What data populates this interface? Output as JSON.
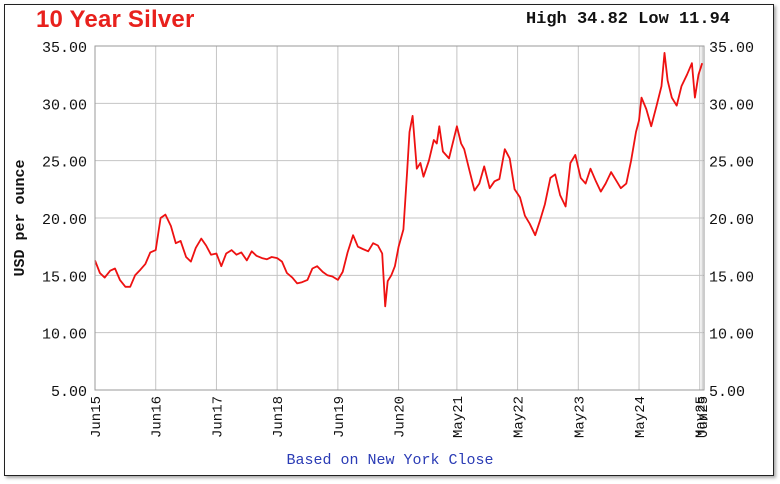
{
  "chart_data": {
    "type": "line",
    "title": "10 Year Silver",
    "stats": "High 34.82 Low 11.94",
    "ylabel": "USD per ounce",
    "footer": "Based on New York Close",
    "ylim": [
      5,
      35
    ],
    "yticks": [
      "35.00",
      "30.00",
      "25.00",
      "20.00",
      "15.00",
      "10.00",
      "5.00"
    ],
    "xlim": [
      2015.42,
      2025.45
    ],
    "xticks": [
      {
        "label": "Jun15",
        "x": 2015.42
      },
      {
        "label": "Jun16",
        "x": 2016.42
      },
      {
        "label": "Jun17",
        "x": 2017.42
      },
      {
        "label": "Jun18",
        "x": 2018.42
      },
      {
        "label": "Jun19",
        "x": 2019.42
      },
      {
        "label": "Jun20",
        "x": 2020.42
      },
      {
        "label": "May21",
        "x": 2021.38
      },
      {
        "label": "May22",
        "x": 2022.38
      },
      {
        "label": "May23",
        "x": 2023.38
      },
      {
        "label": "May24",
        "x": 2024.38
      },
      {
        "label": "May25",
        "x": 2025.38
      },
      {
        "label": "Jun25",
        "x": 2025.42
      }
    ],
    "series": [
      {
        "color": "#ee1111",
        "points": [
          [
            2015.42,
            16.3
          ],
          [
            2015.5,
            15.2
          ],
          [
            2015.58,
            14.8
          ],
          [
            2015.67,
            15.4
          ],
          [
            2015.75,
            15.6
          ],
          [
            2015.83,
            14.6
          ],
          [
            2015.92,
            14.0
          ],
          [
            2016.0,
            14.0
          ],
          [
            2016.08,
            15.0
          ],
          [
            2016.17,
            15.5
          ],
          [
            2016.25,
            16.0
          ],
          [
            2016.33,
            17.0
          ],
          [
            2016.42,
            17.2
          ],
          [
            2016.5,
            20.0
          ],
          [
            2016.58,
            20.3
          ],
          [
            2016.67,
            19.3
          ],
          [
            2016.75,
            17.8
          ],
          [
            2016.83,
            18.0
          ],
          [
            2016.92,
            16.6
          ],
          [
            2017.0,
            16.2
          ],
          [
            2017.08,
            17.4
          ],
          [
            2017.17,
            18.2
          ],
          [
            2017.25,
            17.6
          ],
          [
            2017.33,
            16.8
          ],
          [
            2017.42,
            16.9
          ],
          [
            2017.5,
            15.8
          ],
          [
            2017.58,
            16.9
          ],
          [
            2017.67,
            17.2
          ],
          [
            2017.75,
            16.8
          ],
          [
            2017.83,
            17.0
          ],
          [
            2017.92,
            16.3
          ],
          [
            2018.0,
            17.1
          ],
          [
            2018.08,
            16.7
          ],
          [
            2018.17,
            16.5
          ],
          [
            2018.25,
            16.4
          ],
          [
            2018.33,
            16.6
          ],
          [
            2018.42,
            16.5
          ],
          [
            2018.5,
            16.2
          ],
          [
            2018.58,
            15.2
          ],
          [
            2018.67,
            14.8
          ],
          [
            2018.75,
            14.3
          ],
          [
            2018.83,
            14.4
          ],
          [
            2018.92,
            14.6
          ],
          [
            2019.0,
            15.6
          ],
          [
            2019.08,
            15.8
          ],
          [
            2019.17,
            15.3
          ],
          [
            2019.25,
            15.0
          ],
          [
            2019.33,
            14.9
          ],
          [
            2019.42,
            14.6
          ],
          [
            2019.5,
            15.3
          ],
          [
            2019.58,
            17.0
          ],
          [
            2019.67,
            18.5
          ],
          [
            2019.75,
            17.5
          ],
          [
            2019.83,
            17.3
          ],
          [
            2019.92,
            17.1
          ],
          [
            2020.0,
            17.8
          ],
          [
            2020.08,
            17.6
          ],
          [
            2020.15,
            16.9
          ],
          [
            2020.2,
            12.3
          ],
          [
            2020.24,
            14.5
          ],
          [
            2020.3,
            15.0
          ],
          [
            2020.36,
            15.8
          ],
          [
            2020.42,
            17.5
          ],
          [
            2020.5,
            19.0
          ],
          [
            2020.56,
            24.0
          ],
          [
            2020.6,
            27.5
          ],
          [
            2020.65,
            28.9
          ],
          [
            2020.72,
            24.3
          ],
          [
            2020.78,
            24.8
          ],
          [
            2020.83,
            23.6
          ],
          [
            2020.92,
            25.0
          ],
          [
            2021.0,
            26.8
          ],
          [
            2021.05,
            26.5
          ],
          [
            2021.09,
            28.0
          ],
          [
            2021.15,
            25.8
          ],
          [
            2021.25,
            25.2
          ],
          [
            2021.33,
            26.9
          ],
          [
            2021.38,
            28.0
          ],
          [
            2021.45,
            26.5
          ],
          [
            2021.5,
            26.0
          ],
          [
            2021.58,
            24.3
          ],
          [
            2021.67,
            22.4
          ],
          [
            2021.75,
            23.0
          ],
          [
            2021.83,
            24.5
          ],
          [
            2021.92,
            22.6
          ],
          [
            2022.0,
            23.2
          ],
          [
            2022.08,
            23.4
          ],
          [
            2022.17,
            26.0
          ],
          [
            2022.25,
            25.2
          ],
          [
            2022.33,
            22.5
          ],
          [
            2022.42,
            21.8
          ],
          [
            2022.5,
            20.2
          ],
          [
            2022.58,
            19.5
          ],
          [
            2022.67,
            18.5
          ],
          [
            2022.75,
            19.8
          ],
          [
            2022.83,
            21.2
          ],
          [
            2022.92,
            23.5
          ],
          [
            2023.0,
            23.8
          ],
          [
            2023.08,
            22.0
          ],
          [
            2023.17,
            21.0
          ],
          [
            2023.25,
            24.8
          ],
          [
            2023.33,
            25.5
          ],
          [
            2023.42,
            23.5
          ],
          [
            2023.5,
            23.0
          ],
          [
            2023.58,
            24.3
          ],
          [
            2023.67,
            23.2
          ],
          [
            2023.75,
            22.3
          ],
          [
            2023.83,
            23.0
          ],
          [
            2023.92,
            24.0
          ],
          [
            2024.0,
            23.3
          ],
          [
            2024.08,
            22.6
          ],
          [
            2024.17,
            23.0
          ],
          [
            2024.25,
            25.0
          ],
          [
            2024.33,
            27.5
          ],
          [
            2024.38,
            28.5
          ],
          [
            2024.42,
            30.5
          ],
          [
            2024.5,
            29.5
          ],
          [
            2024.58,
            28.0
          ],
          [
            2024.67,
            29.8
          ],
          [
            2024.75,
            31.5
          ],
          [
            2024.8,
            34.4
          ],
          [
            2024.85,
            32.0
          ],
          [
            2024.92,
            30.5
          ],
          [
            2025.0,
            29.8
          ],
          [
            2025.08,
            31.5
          ],
          [
            2025.17,
            32.5
          ],
          [
            2025.25,
            33.5
          ],
          [
            2025.3,
            30.5
          ],
          [
            2025.36,
            32.5
          ],
          [
            2025.42,
            33.5
          ]
        ]
      }
    ],
    "grid": true
  }
}
